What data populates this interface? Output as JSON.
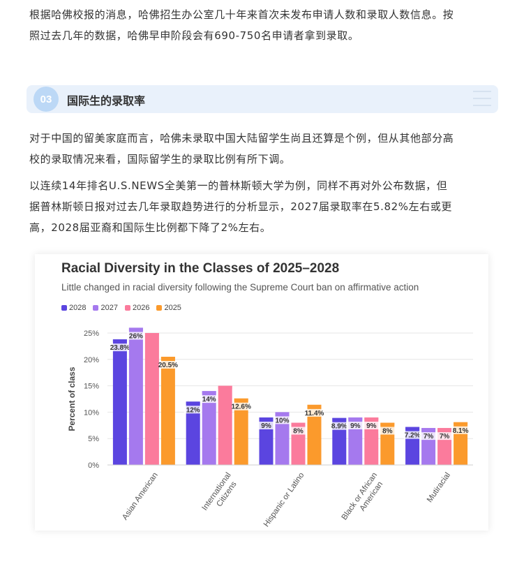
{
  "paragraph1": {
    "line1": "根据哈佛校报的消息，哈佛招生办公室几十年来首次未发布申请人数和录取人数信息。按",
    "line2": "照过去几年的数据，哈佛早申阶段会有690-750名申请者拿到录取。"
  },
  "section": {
    "number": "03",
    "title": "国际生的录取率"
  },
  "paragraph2": {
    "line1": "对于中国的留美家庭而言，哈佛未录取中国大陆留学生尚且还算是个例，但从其他部分高",
    "line2": "校的录取情况来看，国际留学生的录取比例有所下调。"
  },
  "paragraph3": {
    "line1": "以连续14年排名U.S.NEWS全美第一的普林斯顿大学为例，同样不再对外公布数据，但",
    "line2": "据普林斯顿日报对过去几年录取趋势进行的分析显示，2027届录取率在5.82%左右或更",
    "line3": "高，2028届亚裔和国际生比例都下降了2%左右。"
  },
  "chart_data": {
    "type": "bar",
    "title": "Racial Diversity in the Classes of 2025–2028",
    "subtitle": "Little changed in racial diversity following the Supreme Court ban on affirmative action",
    "ylabel": "Percent of class",
    "xlabel": "",
    "ylim": [
      0,
      25
    ],
    "yticks": [
      "0%",
      "5%",
      "10%",
      "15%",
      "20%",
      "25%"
    ],
    "grid": true,
    "legend_position": "top-left",
    "categories": [
      "Asian American",
      "International Citizens",
      "Hispanic or Latino",
      "Black or African American",
      "Mutiracial"
    ],
    "category_labels": [
      [
        "Asian American"
      ],
      [
        "International",
        "Citizens"
      ],
      [
        "Hispanic or Latino"
      ],
      [
        "Black or African",
        "American"
      ],
      [
        "Mutiracial"
      ]
    ],
    "series": [
      {
        "name": "2028",
        "color": "#5b45e0",
        "values": [
          23.8,
          12,
          9,
          8.9,
          7.2
        ],
        "labels": [
          "23.8%",
          "12%",
          "9%",
          "8.9%",
          "7.2%"
        ]
      },
      {
        "name": "2027",
        "color": "#a579ee",
        "values": [
          26,
          14,
          10,
          9,
          7
        ],
        "labels": [
          "26%",
          "14%",
          "10%",
          "9%",
          "7%"
        ]
      },
      {
        "name": "2026",
        "color": "#fb7b9c",
        "values": [
          25,
          15,
          8,
          9,
          7
        ],
        "labels": [
          "",
          "",
          "8%",
          "9%",
          "7%"
        ]
      },
      {
        "name": "2025",
        "color": "#fb9a2c",
        "values": [
          20.5,
          12.6,
          11.4,
          8,
          8.1
        ],
        "labels": [
          "20.5%",
          "12.6%",
          "11.4%",
          "8%",
          "8.1%"
        ]
      }
    ]
  }
}
